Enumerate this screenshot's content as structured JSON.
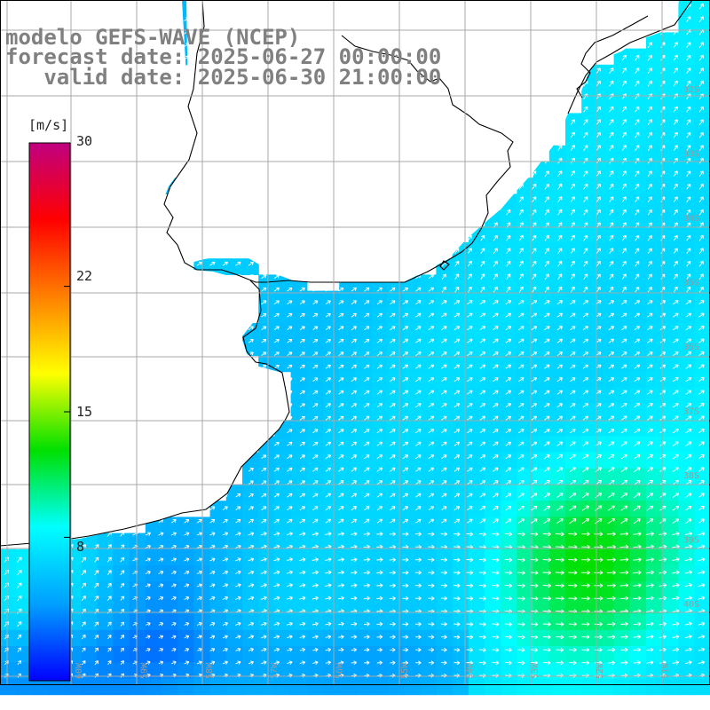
{
  "title": {
    "line1": "modelo GEFS-WAVE (NCEP)",
    "line2": "forecast date: 2025-06-27 00:00:00",
    "line3": "   valid date: 2025-06-30 21:00:00"
  },
  "colorbar": {
    "unit": "[m/s]",
    "ticks": [
      {
        "label": "30",
        "value": 30
      },
      {
        "label": "22",
        "value": 22
      },
      {
        "label": "15",
        "value": 15
      },
      {
        "label": "8",
        "value": 8
      }
    ],
    "range": [
      0,
      30
    ],
    "stops": [
      "#0000ff",
      "#00a0ff",
      "#00ffff",
      "#00e000",
      "#ffff00",
      "#ff8000",
      "#ff0000",
      "#c00080"
    ]
  },
  "map": {
    "lon_range": [
      -60,
      -49
    ],
    "lat_range": [
      -41,
      -31
    ],
    "lat_labels": [
      "32S",
      "33S",
      "34S",
      "35S",
      "36S",
      "37S",
      "38S",
      "39S",
      "40S"
    ],
    "lon_labels": [
      "60W",
      "59W",
      "58W",
      "57W",
      "56W",
      "55W",
      "54W",
      "53W",
      "52W",
      "51W"
    ],
    "wind_direction": "from south-west toward north-east",
    "land_color": "#ffffff",
    "coast_color": "#000000"
  }
}
